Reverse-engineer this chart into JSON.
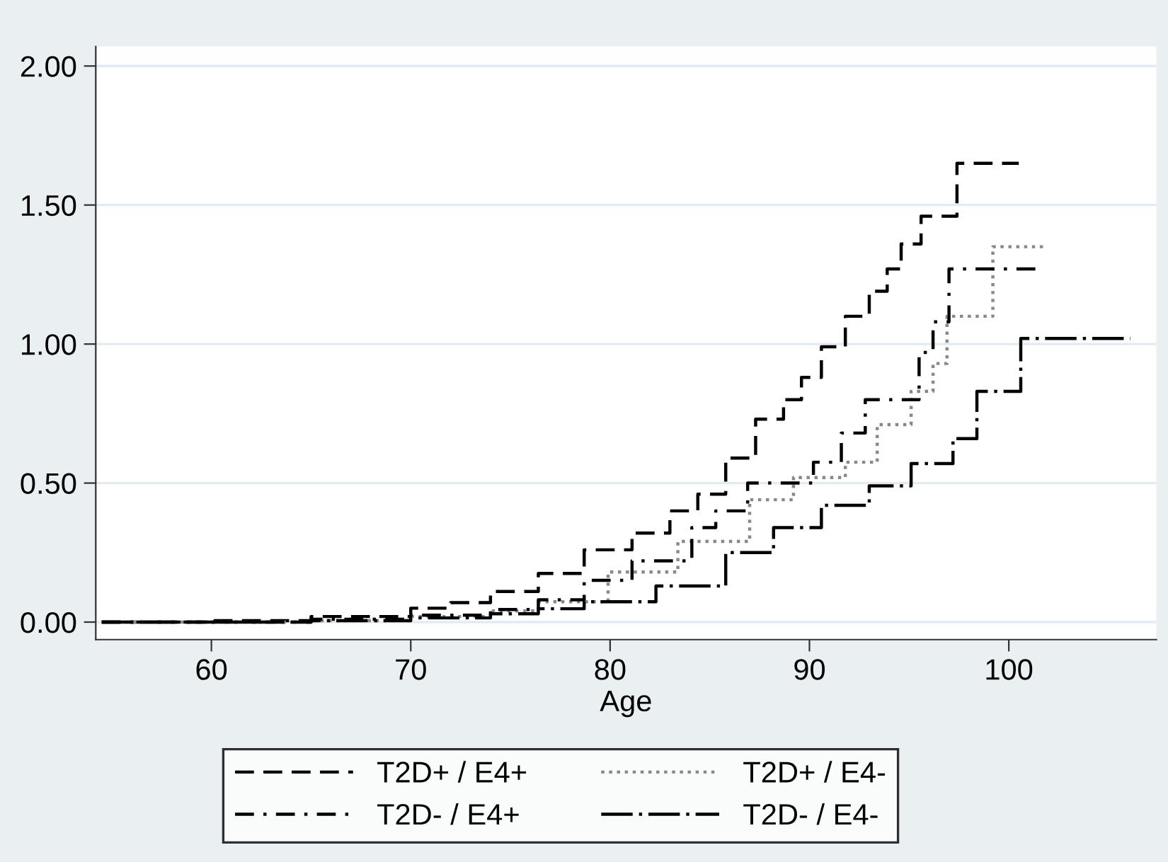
{
  "chart_data": {
    "type": "step",
    "xlabel": "Age",
    "xlim": [
      54.2,
      107.4
    ],
    "xticks": [
      60,
      70,
      80,
      90,
      100
    ],
    "ylim": [
      -0.063,
      2.07
    ],
    "yticks": [
      {
        "value": 0,
        "label": "0.00"
      },
      {
        "value": 0.5,
        "label": "0.50"
      },
      {
        "value": 1,
        "label": "1.00"
      },
      {
        "value": 1.5,
        "label": "1.50"
      },
      {
        "value": 2,
        "label": "2.00"
      }
    ],
    "grid": "y",
    "legend": "bottom",
    "series": [
      {
        "name": "T2D+ / E4+",
        "color": "#000000",
        "line_style": "dashed",
        "x": [
          54.5,
          60,
          65,
          70,
          72,
          74,
          76.4,
          78.7,
          81.1,
          83.0,
          84.4,
          85.8,
          87.3,
          88.7,
          89.6,
          90.6,
          91.8,
          93.0,
          93.9,
          94.6,
          95.6,
          97.4,
          100.5
        ],
        "values": [
          0,
          0.005,
          0.02,
          0.05,
          0.07,
          0.11,
          0.175,
          0.26,
          0.32,
          0.4,
          0.46,
          0.59,
          0.73,
          0.8,
          0.88,
          0.99,
          1.1,
          1.19,
          1.27,
          1.36,
          1.46,
          1.65,
          1.65
        ]
      },
      {
        "name": "T2D+ / E4-",
        "color": "#888888",
        "line_style": "dotted",
        "x": [
          54.5,
          65,
          70,
          74,
          76.4,
          79.9,
          83.4,
          87.0,
          89.2,
          91.8,
          93.4,
          95.1,
          96.2,
          96.9,
          99.2,
          101.8
        ],
        "values": [
          0,
          0.005,
          0.02,
          0.04,
          0.073,
          0.18,
          0.29,
          0.44,
          0.52,
          0.575,
          0.71,
          0.83,
          0.93,
          1.1,
          1.35,
          1.35
        ]
      },
      {
        "name": "T2D- / E4+",
        "color": "#000000",
        "line_style": "dashdot",
        "x": [
          54.5,
          65,
          70,
          74,
          76.4,
          78.7,
          81.1,
          84.1,
          85.3,
          86.9,
          89.2,
          90.2,
          91.6,
          92.8,
          95.5,
          96.2,
          97.0,
          101.5
        ],
        "values": [
          0,
          0.01,
          0.025,
          0.045,
          0.08,
          0.15,
          0.22,
          0.34,
          0.4,
          0.5,
          0.5,
          0.575,
          0.68,
          0.8,
          0.97,
          1.08,
          1.27,
          1.27
        ]
      },
      {
        "name": "T2D- / E4-",
        "color": "#000000",
        "line_style": "longdashdot",
        "x": [
          54.5,
          65,
          70,
          74,
          76.4,
          78.7,
          82.3,
          85.8,
          88.2,
          90.6,
          93.0,
          95.1,
          97.2,
          98.4,
          100.6,
          106.1
        ],
        "values": [
          0,
          0.005,
          0.015,
          0.03,
          0.048,
          0.073,
          0.13,
          0.25,
          0.34,
          0.42,
          0.49,
          0.57,
          0.66,
          0.83,
          1.02,
          1.02
        ]
      }
    ]
  }
}
